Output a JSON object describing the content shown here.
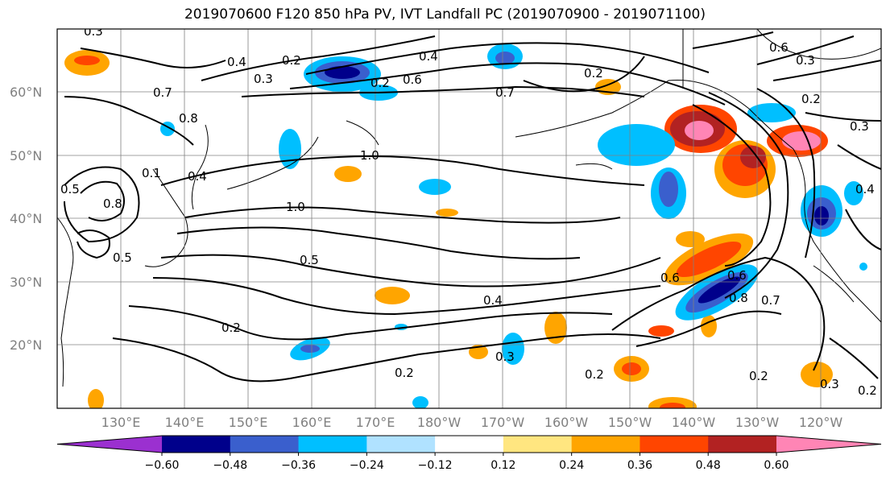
{
  "title": "2019070600 F120 850 hPa PV, IVT Landfall PC (2019070900 - 2019071100)",
  "lon_labels": [
    "130°E",
    "140°E",
    "150°E",
    "160°E",
    "170°E",
    "180°W",
    "170°W",
    "160°W",
    "150°W",
    "140°W",
    "130°W",
    "120°W"
  ],
  "lat_labels": [
    "60°N",
    "50°N",
    "40°N",
    "30°N",
    "20°N"
  ],
  "colorbar": {
    "ticks": [
      "−0.60",
      "−0.48",
      "−0.36",
      "−0.24",
      "−0.12",
      "0.12",
      "0.24",
      "0.36",
      "0.48",
      "0.60"
    ],
    "colors": [
      "#9b30d0",
      "#00008b",
      "#3a5fcd",
      "#00bfff",
      "#b0e2ff",
      "#ffffff",
      "#ffe680",
      "#ffa500",
      "#ff4500",
      "#b22222",
      "#ff85b5"
    ]
  },
  "contour_labels": [
    "0.3",
    "0.4",
    "0.2",
    "0.3",
    "0.4",
    "0.6",
    "0.2",
    "0.7",
    "0.6",
    "0.3",
    "0.2",
    "0.7",
    "0.8",
    "0.4",
    "1.0",
    "0.1",
    "0.2",
    "0.3",
    "0.4",
    "0.5",
    "0.8",
    "0.5",
    "1.0",
    "0.5",
    "0.6",
    "0.6",
    "0.8",
    "0.7",
    "0.4",
    "0.2",
    "0.3",
    "0.2",
    "0.2",
    "0.2",
    "0.3",
    "0.2"
  ]
}
